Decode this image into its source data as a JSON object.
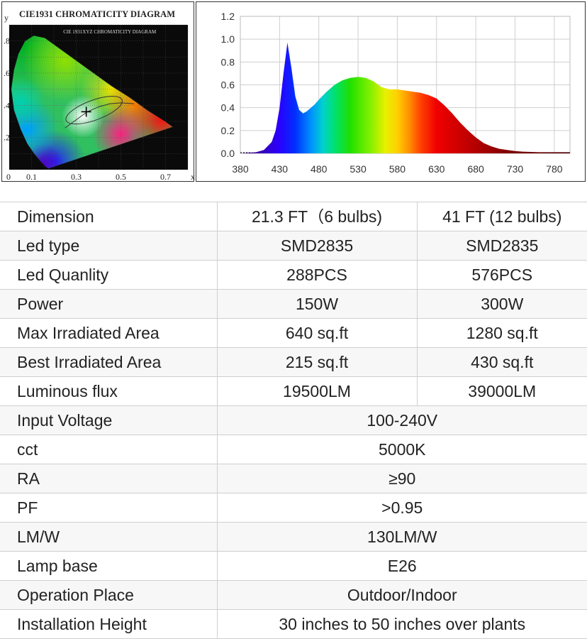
{
  "chart_data": [
    {
      "type": "diagram",
      "title": "CIE1931 CHROMATICITY DIAGRAM",
      "inner_title": "CIE 1931XYZ CHROMATICITY DIAGRAM",
      "x_axis_label": "x",
      "y_axis_label": "y",
      "x_ticks": [
        "0",
        "0.1",
        "0.3",
        "0.5",
        "0.7"
      ],
      "y_ticks": [
        ".8",
        ".6",
        ".4",
        ".2"
      ],
      "xlim": [
        0,
        0.8
      ],
      "ylim": [
        0,
        0.9
      ]
    },
    {
      "type": "area",
      "x_ticks": [
        380,
        430,
        480,
        530,
        580,
        630,
        680,
        730,
        780
      ],
      "y_ticks": [
        "0.0",
        "0.2",
        "0.4",
        "0.6",
        "0.8",
        "1.0",
        "1.2"
      ],
      "xlim": [
        380,
        800
      ],
      "ylim": [
        0,
        1.2
      ],
      "grid": true,
      "x": [
        380,
        400,
        410,
        420,
        425,
        430,
        435,
        440,
        445,
        450,
        455,
        460,
        465,
        470,
        475,
        480,
        490,
        500,
        510,
        520,
        530,
        540,
        550,
        560,
        570,
        580,
        590,
        600,
        610,
        620,
        630,
        640,
        650,
        660,
        670,
        680,
        690,
        700,
        710,
        720,
        730,
        740,
        760,
        780,
        800
      ],
      "y": [
        0.0,
        0.01,
        0.03,
        0.1,
        0.2,
        0.4,
        0.7,
        0.97,
        0.75,
        0.5,
        0.38,
        0.35,
        0.37,
        0.4,
        0.43,
        0.47,
        0.54,
        0.6,
        0.64,
        0.66,
        0.67,
        0.66,
        0.63,
        0.58,
        0.56,
        0.56,
        0.55,
        0.54,
        0.53,
        0.51,
        0.48,
        0.42,
        0.35,
        0.27,
        0.2,
        0.14,
        0.09,
        0.06,
        0.04,
        0.03,
        0.02,
        0.015,
        0.01,
        0.01,
        0.01
      ]
    }
  ],
  "table": {
    "rows": [
      {
        "label": "Dimension",
        "values": [
          "21.3 FT（6 bulbs)",
          "41 FT (12 bulbs)"
        ]
      },
      {
        "label": "Led type",
        "values": [
          "SMD2835",
          "SMD2835"
        ]
      },
      {
        "label": "Led Quanlity",
        "values": [
          "288PCS",
          "576PCS"
        ]
      },
      {
        "label": "Power",
        "values": [
          "150W",
          "300W"
        ]
      },
      {
        "label": "Max Irradiated Area",
        "values": [
          "640 sq.ft",
          "1280 sq.ft"
        ]
      },
      {
        "label": "Best Irradiated Area",
        "values": [
          "215 sq.ft",
          "430 sq.ft"
        ]
      },
      {
        "label": "Luminous flux",
        "values": [
          "19500LM",
          "39000LM"
        ]
      },
      {
        "label": "Input Voltage",
        "values": [
          "100-240V"
        ]
      },
      {
        "label": "cct",
        "values": [
          "5000K"
        ]
      },
      {
        "label": "RA",
        "values": [
          "≥90"
        ]
      },
      {
        "label": "PF",
        "values": [
          ">0.95"
        ]
      },
      {
        "label": "LM/W",
        "values": [
          "130LM/W"
        ]
      },
      {
        "label": "Lamp base",
        "values": [
          "E26"
        ]
      },
      {
        "label": "Operation Place",
        "values": [
          "Outdoor/Indoor"
        ]
      },
      {
        "label": "Installation Height",
        "values": [
          "30 inches to 50 inches over plants"
        ]
      }
    ]
  }
}
